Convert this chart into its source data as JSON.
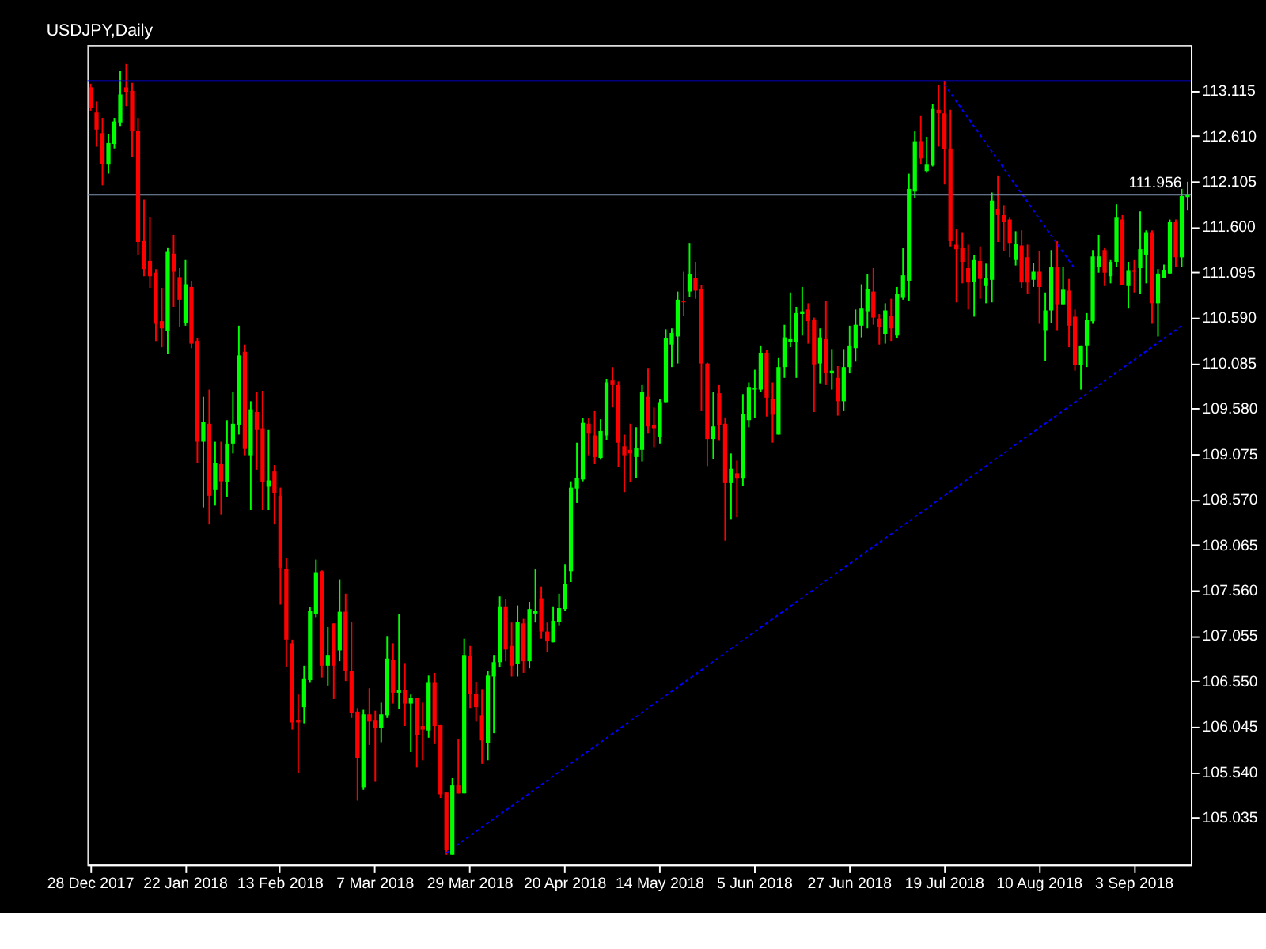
{
  "chart_data": {
    "type": "candlestick",
    "title": "USDJPY,Daily",
    "categories": [
      "28 Dec 2017",
      null,
      null,
      null,
      null,
      null,
      null,
      null,
      null,
      null,
      null,
      null,
      null,
      null,
      null,
      null,
      "22 Jan 2018",
      null,
      null,
      null,
      null,
      null,
      null,
      null,
      null,
      null,
      null,
      null,
      null,
      null,
      null,
      null,
      "13 Feb 2018",
      null,
      null,
      null,
      null,
      null,
      null,
      null,
      null,
      null,
      null,
      null,
      null,
      null,
      null,
      null,
      "7 Mar 2018",
      null,
      null,
      null,
      null,
      null,
      null,
      null,
      null,
      null,
      null,
      null,
      null,
      null,
      null,
      null,
      "29 Mar 2018",
      null,
      null,
      null,
      null,
      null,
      null,
      null,
      null,
      null,
      null,
      null,
      null,
      null,
      null,
      null,
      "20 Apr 2018",
      null,
      null,
      null,
      null,
      null,
      null,
      null,
      null,
      null,
      null,
      null,
      null,
      null,
      null,
      null,
      "14 May 2018",
      null,
      null,
      null,
      null,
      null,
      null,
      null,
      null,
      null,
      null,
      null,
      null,
      null,
      null,
      null,
      "5 Jun 2018",
      null,
      null,
      null,
      null,
      null,
      null,
      null,
      null,
      null,
      null,
      null,
      null,
      null,
      null,
      null,
      "27 Jun 2018",
      null,
      null,
      null,
      null,
      null,
      null,
      null,
      null,
      null,
      null,
      null,
      null,
      null,
      null,
      null,
      "19 Jul 2018",
      null,
      null,
      null,
      null,
      null,
      null,
      null,
      null,
      null,
      null,
      null,
      null,
      null,
      null,
      null,
      "10 Aug 2018",
      null,
      null,
      null,
      null,
      null,
      null,
      null,
      null,
      null,
      null,
      null,
      null,
      null,
      null,
      null,
      "3 Sep 2018",
      null,
      null,
      null,
      null,
      null,
      null,
      null,
      null,
      null
    ],
    "ohlc": [
      [
        113.15,
        113.19,
        112.89,
        112.92
      ],
      [
        112.87,
        112.99,
        112.49,
        112.68
      ],
      [
        112.64,
        112.81,
        112.06,
        112.3
      ],
      [
        112.29,
        112.63,
        112.19,
        112.53
      ],
      [
        112.52,
        112.81,
        112.47,
        112.77
      ],
      [
        112.76,
        113.33,
        112.72,
        113.07
      ],
      [
        113.15,
        113.41,
        112.94,
        113.1
      ],
      [
        113.11,
        113.2,
        112.38,
        112.66
      ],
      [
        112.66,
        112.81,
        111.29,
        111.43
      ],
      [
        111.44,
        111.9,
        111.05,
        111.13
      ],
      [
        111.22,
        111.71,
        110.92,
        111.05
      ],
      [
        111.09,
        111.13,
        110.33,
        110.52
      ],
      [
        110.55,
        110.92,
        110.26,
        110.47
      ],
      [
        110.44,
        111.37,
        110.19,
        111.32
      ],
      [
        111.3,
        111.51,
        110.71,
        111.1
      ],
      [
        111.04,
        111.14,
        110.49,
        110.79
      ],
      [
        110.53,
        111.23,
        110.5,
        110.96
      ],
      [
        110.93,
        111.0,
        110.25,
        110.3
      ],
      [
        110.33,
        110.36,
        108.97,
        109.21
      ],
      [
        109.21,
        109.71,
        108.48,
        109.43
      ],
      [
        109.41,
        109.79,
        108.29,
        108.61
      ],
      [
        108.68,
        109.21,
        108.5,
        108.97
      ],
      [
        108.96,
        109.21,
        108.4,
        108.77
      ],
      [
        108.76,
        109.45,
        108.6,
        109.19
      ],
      [
        109.19,
        109.76,
        109.08,
        109.41
      ],
      [
        109.4,
        110.5,
        109.29,
        110.17
      ],
      [
        110.21,
        110.29,
        109.06,
        109.13
      ],
      [
        109.06,
        109.66,
        108.45,
        109.57
      ],
      [
        109.54,
        109.76,
        108.9,
        109.34
      ],
      [
        109.36,
        109.77,
        108.45,
        108.76
      ],
      [
        108.71,
        109.34,
        108.45,
        108.78
      ],
      [
        108.88,
        108.95,
        108.29,
        108.64
      ],
      [
        108.61,
        108.7,
        107.4,
        107.81
      ],
      [
        107.8,
        107.92,
        106.71,
        107.01
      ],
      [
        106.97,
        107.01,
        106.01,
        106.09
      ],
      [
        106.12,
        106.4,
        105.53,
        106.09
      ],
      [
        106.26,
        106.72,
        106.08,
        106.58
      ],
      [
        106.56,
        107.37,
        106.53,
        107.33
      ],
      [
        107.29,
        107.9,
        107.26,
        107.76
      ],
      [
        107.77,
        107.78,
        106.59,
        106.72
      ],
      [
        106.72,
        107.15,
        106.5,
        106.84
      ],
      [
        107.19,
        107.19,
        106.35,
        106.72
      ],
      [
        106.89,
        107.68,
        106.77,
        107.32
      ],
      [
        107.32,
        107.52,
        106.55,
        106.66
      ],
      [
        106.66,
        107.21,
        106.14,
        106.2
      ],
      [
        106.21,
        106.25,
        105.22,
        105.69
      ],
      [
        105.37,
        106.23,
        105.34,
        106.18
      ],
      [
        106.18,
        106.47,
        105.84,
        106.1
      ],
      [
        106.11,
        106.22,
        105.43,
        106.03
      ],
      [
        106.03,
        106.31,
        105.87,
        106.18
      ],
      [
        106.17,
        107.05,
        106.14,
        106.8
      ],
      [
        106.78,
        106.97,
        106.3,
        106.42
      ],
      [
        106.42,
        107.29,
        106.24,
        106.45
      ],
      [
        106.45,
        106.75,
        106.05,
        106.3
      ],
      [
        106.3,
        106.4,
        105.76,
        106.36
      ],
      [
        106.36,
        106.36,
        105.59,
        105.95
      ],
      [
        106.05,
        106.31,
        105.67,
        106.01
      ],
      [
        106.0,
        106.61,
        105.92,
        106.53
      ],
      [
        106.53,
        106.64,
        105.85,
        106.05
      ],
      [
        106.06,
        106.06,
        105.25,
        105.29
      ],
      [
        105.31,
        105.31,
        104.62,
        104.67
      ],
      [
        104.62,
        105.47,
        104.62,
        105.39
      ],
      [
        105.39,
        105.9,
        105.3,
        105.3
      ],
      [
        105.3,
        107.02,
        105.3,
        106.84
      ],
      [
        106.83,
        106.94,
        106.25,
        106.41
      ],
      [
        106.41,
        106.54,
        106.1,
        106.26
      ],
      [
        106.17,
        106.46,
        105.63,
        105.89
      ],
      [
        105.86,
        106.66,
        105.67,
        106.61
      ],
      [
        106.6,
        106.84,
        105.97,
        106.76
      ],
      [
        106.76,
        107.49,
        106.7,
        107.38
      ],
      [
        107.38,
        107.46,
        106.77,
        106.9
      ],
      [
        106.94,
        107.2,
        106.6,
        106.72
      ],
      [
        106.74,
        107.39,
        106.6,
        107.21
      ],
      [
        107.19,
        107.24,
        106.64,
        106.77
      ],
      [
        106.77,
        107.43,
        106.69,
        107.35
      ],
      [
        107.3,
        107.79,
        107.2,
        107.33
      ],
      [
        107.47,
        107.6,
        107.02,
        107.1
      ],
      [
        107.1,
        107.2,
        106.87,
        106.99
      ],
      [
        106.98,
        107.38,
        106.98,
        107.22
      ],
      [
        107.21,
        107.52,
        107.17,
        107.36
      ],
      [
        107.35,
        107.85,
        107.33,
        107.63
      ],
      [
        107.77,
        108.77,
        107.65,
        108.7
      ],
      [
        108.69,
        109.2,
        108.53,
        108.81
      ],
      [
        108.79,
        109.47,
        108.77,
        109.42
      ],
      [
        109.41,
        109.47,
        109.06,
        109.3
      ],
      [
        109.28,
        109.55,
        108.96,
        109.04
      ],
      [
        109.03,
        109.46,
        109.01,
        109.33
      ],
      [
        109.28,
        109.91,
        109.23,
        109.87
      ],
      [
        109.89,
        110.04,
        109.59,
        109.84
      ],
      [
        109.84,
        109.88,
        108.93,
        109.2
      ],
      [
        109.16,
        109.29,
        108.65,
        109.06
      ],
      [
        109.12,
        109.41,
        108.76,
        109.08
      ],
      [
        109.04,
        109.37,
        108.81,
        109.14
      ],
      [
        109.12,
        109.84,
        108.99,
        109.76
      ],
      [
        109.71,
        110.03,
        109.3,
        109.38
      ],
      [
        109.4,
        109.59,
        109.15,
        109.36
      ],
      [
        109.26,
        109.69,
        109.19,
        109.65
      ],
      [
        109.65,
        110.46,
        109.65,
        110.36
      ],
      [
        110.29,
        110.47,
        110.04,
        110.42
      ],
      [
        110.38,
        110.88,
        110.08,
        110.79
      ],
      [
        110.77,
        111.1,
        110.61,
        110.76
      ],
      [
        110.88,
        111.42,
        110.82,
        111.07
      ],
      [
        111.03,
        111.21,
        110.8,
        110.89
      ],
      [
        110.91,
        110.95,
        109.55,
        110.08
      ],
      [
        110.08,
        110.09,
        108.94,
        109.24
      ],
      [
        109.24,
        109.76,
        109.02,
        109.38
      ],
      [
        109.75,
        109.84,
        109.22,
        109.4
      ],
      [
        109.41,
        109.48,
        108.11,
        108.75
      ],
      [
        108.75,
        109.08,
        108.35,
        108.91
      ],
      [
        108.86,
        109.0,
        108.37,
        108.8
      ],
      [
        108.8,
        109.74,
        108.72,
        109.52
      ],
      [
        109.45,
        109.87,
        109.37,
        109.82
      ],
      [
        109.79,
        110.01,
        109.47,
        109.81
      ],
      [
        109.79,
        110.28,
        109.76,
        110.2
      ],
      [
        110.2,
        110.23,
        109.49,
        109.7
      ],
      [
        109.69,
        109.87,
        109.2,
        109.51
      ],
      [
        109.29,
        110.14,
        109.29,
        110.04
      ],
      [
        110.04,
        110.51,
        109.92,
        110.37
      ],
      [
        110.32,
        110.87,
        110.26,
        110.35
      ],
      [
        110.32,
        110.71,
        109.92,
        110.64
      ],
      [
        110.63,
        110.93,
        110.39,
        110.66
      ],
      [
        110.68,
        110.75,
        110.3,
        110.55
      ],
      [
        110.56,
        110.59,
        109.54,
        110.07
      ],
      [
        110.08,
        110.47,
        109.86,
        110.37
      ],
      [
        110.35,
        110.78,
        109.84,
        109.97
      ],
      [
        109.97,
        110.24,
        109.79,
        110.0
      ],
      [
        109.92,
        110.05,
        109.5,
        109.66
      ],
      [
        109.66,
        110.24,
        109.55,
        110.04
      ],
      [
        110.04,
        110.5,
        109.97,
        110.28
      ],
      [
        110.25,
        110.68,
        110.1,
        110.51
      ],
      [
        110.5,
        110.96,
        110.37,
        110.69
      ],
      [
        110.66,
        111.07,
        110.47,
        110.91
      ],
      [
        110.88,
        111.14,
        110.51,
        110.59
      ],
      [
        110.58,
        110.63,
        110.29,
        110.48
      ],
      [
        110.41,
        110.75,
        110.3,
        110.67
      ],
      [
        110.61,
        110.8,
        110.33,
        110.47
      ],
      [
        110.39,
        110.93,
        110.36,
        110.85
      ],
      [
        110.81,
        111.36,
        110.79,
        111.06
      ],
      [
        111.0,
        112.19,
        110.78,
        112.02
      ],
      [
        111.99,
        112.66,
        111.92,
        112.55
      ],
      [
        112.55,
        112.83,
        112.29,
        112.36
      ],
      [
        112.22,
        112.6,
        112.2,
        112.29
      ],
      [
        112.28,
        112.96,
        112.27,
        112.91
      ],
      [
        112.9,
        113.18,
        112.49,
        112.86
      ],
      [
        112.86,
        113.22,
        112.07,
        112.46
      ],
      [
        112.47,
        112.9,
        111.38,
        111.44
      ],
      [
        111.4,
        111.57,
        110.76,
        111.35
      ],
      [
        111.36,
        111.54,
        110.97,
        111.21
      ],
      [
        111.14,
        111.4,
        110.68,
        110.98
      ],
      [
        110.99,
        111.29,
        110.6,
        111.23
      ],
      [
        111.22,
        111.38,
        110.8,
        111.02
      ],
      [
        110.94,
        111.19,
        110.75,
        111.03
      ],
      [
        111.01,
        111.98,
        110.76,
        111.89
      ],
      [
        111.8,
        112.17,
        111.43,
        111.73
      ],
      [
        111.73,
        111.84,
        111.33,
        111.65
      ],
      [
        111.68,
        111.7,
        111.26,
        111.42
      ],
      [
        111.23,
        111.55,
        111.17,
        111.41
      ],
      [
        111.39,
        111.56,
        110.92,
        110.98
      ],
      [
        111.26,
        111.4,
        110.85,
        110.98
      ],
      [
        111.01,
        111.2,
        110.93,
        111.1
      ],
      [
        111.1,
        111.33,
        110.52,
        110.93
      ],
      [
        110.45,
        110.87,
        110.11,
        110.67
      ],
      [
        110.67,
        111.34,
        110.53,
        111.15
      ],
      [
        111.15,
        111.44,
        110.45,
        110.73
      ],
      [
        110.73,
        111.15,
        110.73,
        110.9
      ],
      [
        110.89,
        111.02,
        110.26,
        110.5
      ],
      [
        110.6,
        110.68,
        110.0,
        110.06
      ],
      [
        110.06,
        110.28,
        109.79,
        110.28
      ],
      [
        110.28,
        110.64,
        110.04,
        110.56
      ],
      [
        110.55,
        111.34,
        110.52,
        111.27
      ],
      [
        111.15,
        111.51,
        111.09,
        111.27
      ],
      [
        111.34,
        111.37,
        110.94,
        111.09
      ],
      [
        111.05,
        111.23,
        110.97,
        111.21
      ],
      [
        111.21,
        111.85,
        111.15,
        111.7
      ],
      [
        111.68,
        111.73,
        110.95,
        110.95
      ],
      [
        110.94,
        111.21,
        110.69,
        111.11
      ],
      [
        111.11,
        111.23,
        110.87,
        111.1
      ],
      [
        111.14,
        111.77,
        110.85,
        111.35
      ],
      [
        111.29,
        111.56,
        110.97,
        111.54
      ],
      [
        111.54,
        111.56,
        110.52,
        110.75
      ],
      [
        110.75,
        111.13,
        110.38,
        111.08
      ],
      [
        111.03,
        111.18,
        111.03,
        111.12
      ],
      [
        111.08,
        111.68,
        111.08,
        111.65
      ],
      [
        111.65,
        111.68,
        111.15,
        111.26
      ],
      [
        111.26,
        112.02,
        111.15,
        111.94
      ],
      [
        111.93,
        112.1,
        111.78,
        111.96
      ]
    ],
    "colors": [
      "#ff0000",
      "#ff0000",
      "#ff0000",
      "#00ff00",
      "#00ff00",
      "#00ff00",
      "#ff0000",
      "#ff0000",
      "#ff0000",
      "#ff0000",
      "#ff0000",
      "#ff0000",
      "#ff0000",
      "#00ff00",
      "#ff0000",
      "#ff0000",
      "#00ff00",
      "#ff0000",
      "#ff0000",
      "#00ff00",
      "#ff0000",
      "#00ff00",
      "#ff0000",
      "#00ff00",
      "#00ff00",
      "#00ff00",
      "#ff0000",
      "#00ff00",
      "#ff0000",
      "#ff0000",
      "#00ff00",
      "#ff0000",
      "#ff0000",
      "#ff0000",
      "#ff0000",
      "#ff0000",
      "#00ff00",
      "#00ff00",
      "#00ff00",
      "#ff0000",
      "#00ff00",
      "#ff0000",
      "#00ff00",
      "#ff0000",
      "#ff0000",
      "#ff0000",
      "#00ff00",
      "#ff0000",
      "#ff0000",
      "#00ff00",
      "#00ff00",
      "#ff0000",
      "#00ff00",
      "#ff0000",
      "#00ff00",
      "#ff0000",
      "#ff0000",
      "#00ff00",
      "#ff0000",
      "#ff0000",
      "#ff0000",
      "#00ff00",
      "#ff0000",
      "#00ff00",
      "#ff0000",
      "#ff0000",
      "#ff0000",
      "#00ff00",
      "#00ff00",
      "#00ff00",
      "#ff0000",
      "#ff0000",
      "#00ff00",
      "#ff0000",
      "#00ff00",
      "#00ff00",
      "#ff0000",
      "#ff0000",
      "#00ff00",
      "#00ff00",
      "#00ff00",
      "#00ff00",
      "#00ff00",
      "#00ff00",
      "#ff0000",
      "#ff0000",
      "#00ff00",
      "#00ff00",
      "#ff0000",
      "#ff0000",
      "#ff0000",
      "#ff0000",
      "#00ff00",
      "#00ff00",
      "#ff0000",
      "#ff0000",
      "#00ff00",
      "#00ff00",
      "#00ff00",
      "#00ff00",
      "#ff0000",
      "#00ff00",
      "#ff0000",
      "#ff0000",
      "#ff0000",
      "#00ff00",
      "#ff0000",
      "#ff0000",
      "#00ff00",
      "#ff0000",
      "#00ff00",
      "#00ff00",
      "#00ff00",
      "#00ff00",
      "#ff0000",
      "#ff0000",
      "#00ff00",
      "#00ff00",
      "#00ff00",
      "#00ff00",
      "#00ff00",
      "#ff0000",
      "#ff0000",
      "#00ff00",
      "#ff0000",
      "#00ff00",
      "#ff0000",
      "#00ff00",
      "#00ff00",
      "#00ff00",
      "#00ff00",
      "#00ff00",
      "#ff0000",
      "#ff0000",
      "#00ff00",
      "#ff0000",
      "#00ff00",
      "#00ff00",
      "#00ff00",
      "#00ff00",
      "#ff0000",
      "#00ff00",
      "#00ff00",
      "#ff0000",
      "#ff0000",
      "#ff0000",
      "#ff0000",
      "#ff0000",
      "#ff0000",
      "#00ff00",
      "#ff0000",
      "#00ff00",
      "#00ff00",
      "#ff0000",
      "#ff0000",
      "#ff0000",
      "#00ff00",
      "#ff0000",
      "#ff0000",
      "#00ff00",
      "#ff0000",
      "#00ff00",
      "#00ff00",
      "#ff0000",
      "#00ff00",
      "#ff0000",
      "#ff0000",
      "#00ff00",
      "#00ff00",
      "#00ff00",
      "#00ff00",
      "#ff0000",
      "#00ff00",
      "#00ff00",
      "#ff0000",
      "#00ff00",
      "#ff0000",
      "#00ff00",
      "#00ff00",
      "#ff0000",
      "#00ff00",
      "#00ff00",
      "#00ff00",
      "#ff0000",
      "#00ff00",
      "#00ff00"
    ],
    "series": [
      {
        "type": "line",
        "color": "#0000ff",
        "line_style": "dotted",
        "values": [
          null,
          null,
          null,
          null,
          null,
          null,
          null,
          null,
          null,
          null,
          null,
          null,
          null,
          null,
          null,
          null,
          null,
          null,
          null,
          null,
          null,
          null,
          null,
          null,
          null,
          null,
          null,
          null,
          null,
          null,
          null,
          null,
          null,
          null,
          null,
          null,
          null,
          null,
          null,
          null,
          null,
          null,
          null,
          null,
          null,
          null,
          null,
          null,
          null,
          null,
          null,
          null,
          null,
          null,
          null,
          null,
          null,
          null,
          null,
          null,
          104.64,
          null,
          null,
          null,
          null,
          null,
          null,
          null,
          null,
          null,
          null,
          null,
          null,
          null,
          null,
          null,
          null,
          null,
          null,
          null,
          null,
          null,
          null,
          null,
          null,
          null,
          null,
          null,
          null,
          null,
          null,
          null,
          null,
          null,
          null,
          null,
          null,
          null,
          null,
          null,
          null,
          null,
          null,
          null,
          null,
          null,
          null,
          null,
          null,
          null,
          null,
          null,
          null,
          null,
          null,
          null,
          null,
          null,
          null,
          null,
          null,
          null,
          null,
          null,
          null,
          null,
          null,
          null,
          null,
          null,
          null,
          null,
          null,
          null,
          null,
          null,
          null,
          null,
          null,
          null,
          null,
          null,
          null,
          null,
          null,
          null,
          null,
          null,
          null,
          null,
          null,
          null,
          null,
          null,
          null,
          null,
          null,
          null,
          null,
          null,
          null,
          null,
          null,
          null,
          null,
          null,
          null,
          null,
          null,
          null,
          null,
          null,
          null,
          null,
          null,
          null,
          null,
          null,
          null,
          null,
          null,
          null,
          null,
          null,
          110.5,
          null
        ]
      },
      {
        "type": "line",
        "color": "#0000ff",
        "line_style": "dotted",
        "values": [
          null,
          null,
          null,
          null,
          null,
          null,
          null,
          null,
          null,
          null,
          null,
          null,
          null,
          null,
          null,
          null,
          null,
          null,
          null,
          null,
          null,
          null,
          null,
          null,
          null,
          null,
          null,
          null,
          null,
          null,
          null,
          null,
          null,
          null,
          null,
          null,
          null,
          null,
          null,
          null,
          null,
          null,
          null,
          null,
          null,
          null,
          null,
          null,
          null,
          null,
          null,
          null,
          null,
          null,
          null,
          null,
          null,
          null,
          null,
          null,
          null,
          null,
          null,
          null,
          null,
          null,
          null,
          null,
          null,
          null,
          null,
          null,
          null,
          null,
          null,
          null,
          null,
          null,
          null,
          null,
          null,
          null,
          null,
          null,
          null,
          null,
          null,
          null,
          null,
          null,
          null,
          null,
          null,
          null,
          null,
          null,
          null,
          null,
          null,
          null,
          null,
          null,
          null,
          null,
          null,
          null,
          null,
          null,
          null,
          null,
          null,
          null,
          null,
          null,
          null,
          null,
          null,
          null,
          null,
          null,
          null,
          null,
          null,
          null,
          null,
          null,
          null,
          null,
          null,
          null,
          null,
          null,
          null,
          null,
          null,
          null,
          null,
          null,
          null,
          null,
          null,
          null,
          null,
          null,
          113.18,
          null,
          null,
          null,
          null,
          null,
          null,
          null,
          null,
          null,
          null,
          null,
          null,
          null,
          null,
          null,
          null,
          null,
          null,
          null,
          null,
          null,
          111.13,
          null,
          null,
          null,
          null,
          null,
          null,
          null,
          null,
          null,
          null,
          null,
          null,
          null,
          null,
          null,
          null,
          null,
          null,
          null
        ]
      }
    ],
    "ref_lines": [
      {
        "axis": "y",
        "value": 111.956,
        "label": "111.956",
        "color": "#8094b0"
      },
      {
        "axis": "y",
        "value": 113.22,
        "label": null,
        "color": "#0000ff"
      }
    ],
    "ylim": [
      104.51,
      113.62
    ],
    "yticks": [
      105.035,
      {
        "value": 105.54,
        "label": "105.540"
      },
      106.045,
      {
        "value": 106.55,
        "label": "106.550"
      },
      107.055,
      {
        "value": 107.56,
        "label": "107.560"
      },
      108.065,
      {
        "value": 108.57,
        "label": "108.570"
      },
      109.075,
      {
        "value": 109.58,
        "label": "109.580"
      },
      110.085,
      {
        "value": 110.59,
        "label": "110.590"
      },
      111.095,
      {
        "value": 111.6,
        "label": "111.600"
      },
      112.105,
      {
        "value": 112.61,
        "label": "112.610"
      },
      113.115
    ]
  }
}
